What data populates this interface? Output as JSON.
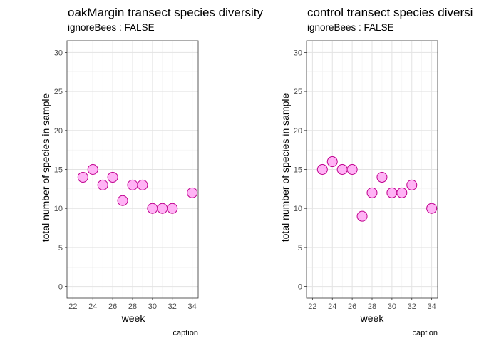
{
  "chart_data": [
    {
      "type": "scatter",
      "title": "oakMargin transect species diversity",
      "subtitle": "ignoreBees : FALSE",
      "xlabel": "week",
      "ylabel": "total number of species in sample",
      "caption": "caption",
      "xlim": [
        21.4,
        34.6
      ],
      "ylim": [
        -1.5,
        31.5
      ],
      "xticks": [
        22,
        24,
        26,
        28,
        30,
        32,
        34
      ],
      "yticks": [
        0,
        5,
        10,
        15,
        20,
        25,
        30
      ],
      "grid": true,
      "point_fill": "#ffb3f5",
      "point_stroke": "#c0008f",
      "x": [
        23,
        24,
        25,
        26,
        27,
        28,
        29,
        30,
        31,
        32,
        34
      ],
      "y": [
        14,
        15,
        13,
        14,
        11,
        13,
        13,
        10,
        10,
        10,
        12
      ]
    },
    {
      "type": "scatter",
      "title": "control transect species diversi",
      "subtitle": "ignoreBees : FALSE",
      "xlabel": "week",
      "ylabel": "total number of species in sample",
      "caption": "caption",
      "xlim": [
        21.4,
        34.6
      ],
      "ylim": [
        -1.5,
        31.5
      ],
      "xticks": [
        22,
        24,
        26,
        28,
        30,
        32,
        34
      ],
      "yticks": [
        0,
        5,
        10,
        15,
        20,
        25,
        30
      ],
      "grid": true,
      "point_fill": "#ffb3f5",
      "point_stroke": "#c0008f",
      "x": [
        23,
        24,
        25,
        26,
        27,
        28,
        29,
        30,
        31,
        32,
        34
      ],
      "y": [
        15,
        16,
        15,
        15,
        9,
        12,
        14,
        12,
        12,
        13,
        10
      ]
    }
  ]
}
